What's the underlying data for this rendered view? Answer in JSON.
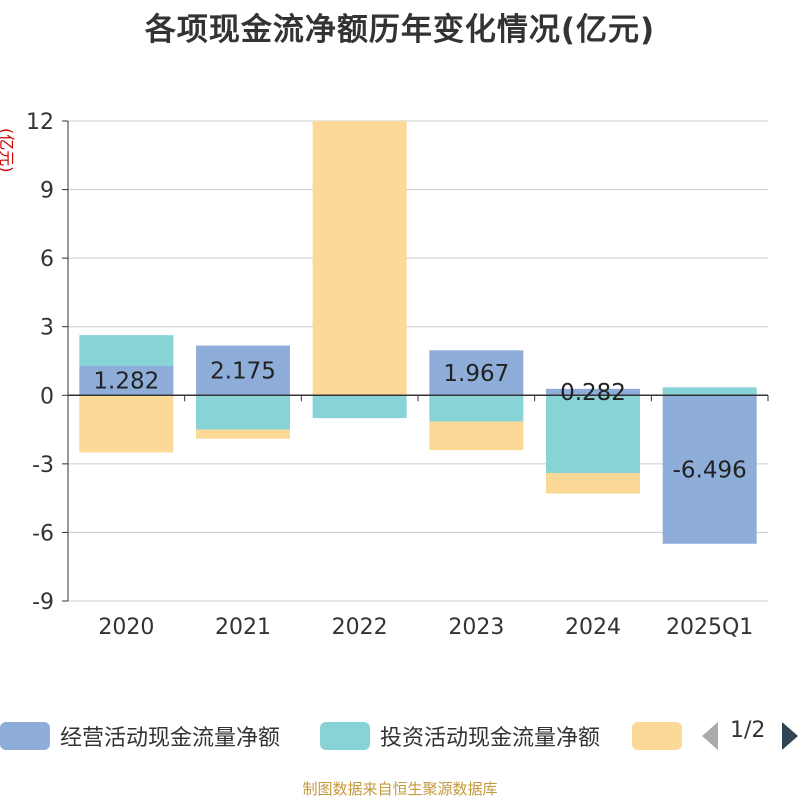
{
  "chart_data": {
    "type": "bar",
    "stacked": true,
    "title": "各项现金流净额历年变化情况(亿元)",
    "ylabel": "(亿元)",
    "categories": [
      "2020",
      "2021",
      "2022",
      "2023",
      "2024",
      "2025Q1"
    ],
    "ylim": [
      -9,
      12
    ],
    "yticks": [
      -9,
      -6,
      -3,
      0,
      3,
      6,
      9,
      12
    ],
    "grid": true,
    "series": [
      {
        "name": "经营活动现金流量净额",
        "color": "#8eadd9",
        "values": [
          1.282,
          2.175,
          0,
          1.967,
          0.282,
          -6.496
        ],
        "labels": [
          "1.282",
          "2.175",
          "",
          "1.967",
          "0.282",
          "-6.496"
        ]
      },
      {
        "name": "投资活动现金流量净额",
        "color": "#88d3d6",
        "values": [
          1.35,
          -1.5,
          -1.0,
          -1.15,
          -3.4,
          0.35
        ]
      },
      {
        "name": "",
        "color": "#fdd997",
        "values": [
          -2.5,
          -0.4,
          12.5,
          -1.25,
          -0.9,
          0
        ]
      }
    ],
    "legend": {
      "position": "bottom",
      "page": "1/2"
    }
  },
  "source": "制图数据来自恒生聚源数据库"
}
